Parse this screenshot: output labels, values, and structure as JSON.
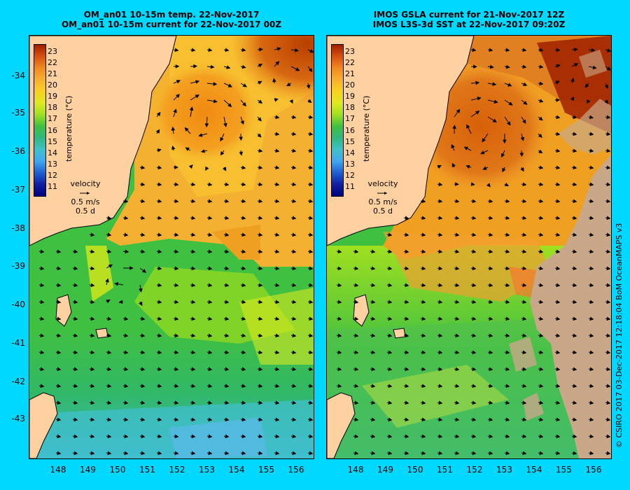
{
  "left_panel": {
    "title_line1": "OM_an01 10-15m temp. 22-Nov-2017",
    "title_line2": "OM_an01 10-15m current for 22-Nov-2017 00Z"
  },
  "right_panel": {
    "title_line1": "IMOS GSLA current for 21-Nov-2017 12Z",
    "title_line2": "IMOS L3S-3d SST at 22-Nov-2017 09:20Z"
  },
  "colorbar": {
    "title": "temperature (°C)",
    "ticks": [
      "23",
      "22",
      "21",
      "20",
      "19",
      "18",
      "17",
      "16",
      "15",
      "14",
      "13",
      "12",
      "11"
    ]
  },
  "velocity_legend": {
    "label": "velocity",
    "speed": "0.5 m/s",
    "duration": "0.5 d"
  },
  "latitude_ticks": [
    "-34",
    "-35",
    "-36",
    "-37",
    "-38",
    "-39",
    "-40",
    "-41",
    "-42",
    "-43"
  ],
  "longitude_ticks": [
    "148",
    "149",
    "150",
    "151",
    "152",
    "153",
    "154",
    "155",
    "156"
  ],
  "credit": "© CSIRO 2017   03-Dec-2017 12:18:04 BoM OceanMAPS v3",
  "colors": {
    "background": "#00d8ff",
    "land": "#ffd0a0",
    "no_data": "#c8a888"
  }
}
